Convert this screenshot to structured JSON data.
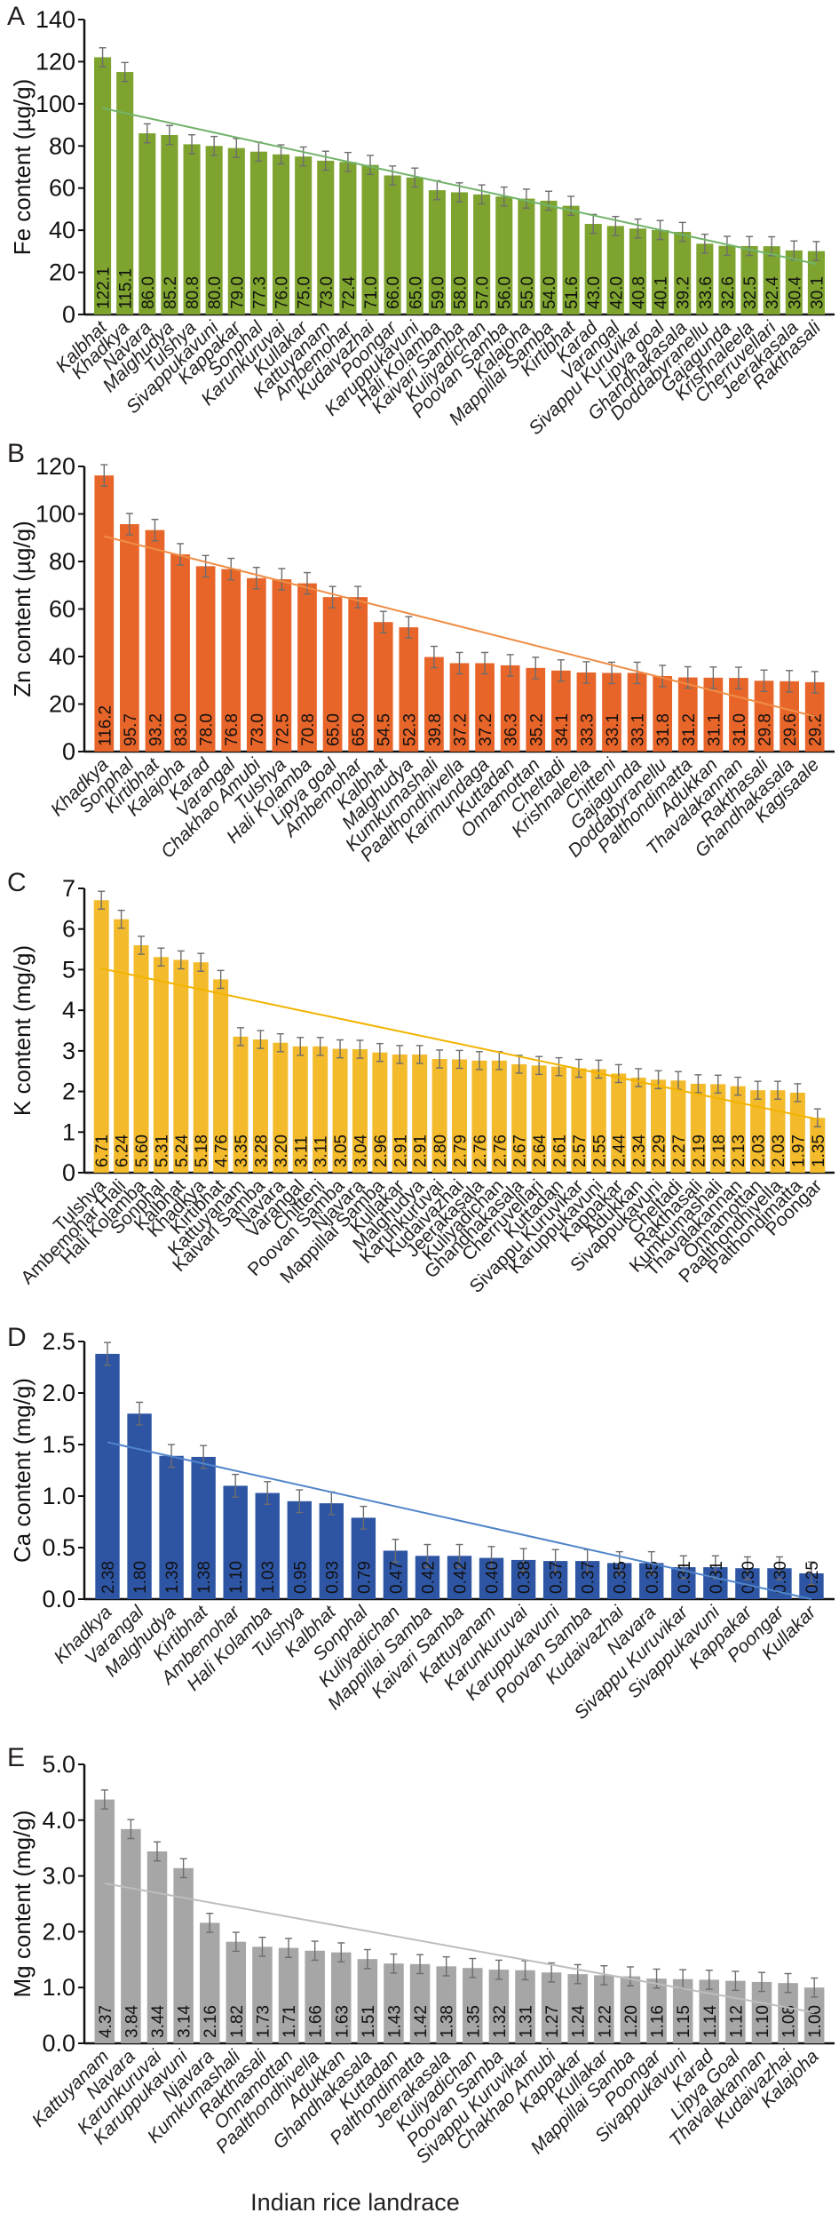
{
  "figure": {
    "xlabel": "Indian rice landrace"
  },
  "chart_data": [
    {
      "panel": "A",
      "type": "bar",
      "ylabel": "Fe content (µg/g)",
      "ylim": [
        0,
        140
      ],
      "yticks": [
        0,
        20,
        40,
        60,
        80,
        100,
        120,
        140
      ],
      "ytick_labels": [
        "0",
        "20",
        "40",
        "60",
        "80",
        "100",
        "120",
        "140"
      ],
      "color": "#7ea42f",
      "trend_color": "#72b36a",
      "error": 4.5,
      "italic_labels": true,
      "categories": [
        "Kalbhat",
        "Khadkya",
        "Navara",
        "Malghudya",
        "Tulshya",
        "Sivappukavuni",
        "Kappakar",
        "Sonphal",
        "Karunkuruvai",
        "Kullakar",
        "Kattuyanam",
        "Ambemohar",
        "Kudaivazhai",
        "Poongar",
        "Karuppukavuni",
        "Hali Kolamba",
        "Kaivari Samba",
        "Kuliyadichan",
        "Poovan Samba",
        "Kalajoha",
        "Mappillai Samba",
        "Kirtibhat",
        "Karad",
        "Varangal",
        "Sivappu Kuruvikar",
        "Lipya goal",
        "Ghandhakasala",
        "Doddabyranellu",
        "Gajagunda",
        "Krishnaleela",
        "Cherruvellari",
        "Jeerakasala",
        "Rakthasali"
      ],
      "values": [
        122.1,
        115.1,
        86.0,
        85.2,
        80.8,
        80.0,
        79.0,
        77.3,
        76.0,
        75.0,
        73.0,
        72.4,
        71.0,
        66.0,
        65.0,
        59.0,
        58.0,
        57.0,
        56.0,
        55.0,
        54.0,
        51.6,
        43.0,
        42.0,
        40.8,
        40.1,
        39.2,
        33.6,
        32.6,
        32.5,
        32.4,
        30.4,
        30.1
      ],
      "value_labels": [
        "122.1",
        "115.1",
        "86.0",
        "85.2",
        "80.8",
        "80.0",
        "79.0",
        "77.3",
        "76.0",
        "75.0",
        "73.0",
        "72.4",
        "71.0",
        "66.0",
        "65.0",
        "59.0",
        "58.0",
        "57.0",
        "56.0",
        "55.0",
        "54.0",
        "51.6",
        "43.0",
        "42.0",
        "40.8",
        "40.1",
        "39.2",
        "33.6",
        "32.6",
        "32.5",
        "32.4",
        "30.4",
        "30.1"
      ],
      "trendline": "linear"
    },
    {
      "panel": "B",
      "type": "bar",
      "ylabel": "Zn content (µg/g)",
      "ylim": [
        0,
        120
      ],
      "yticks": [
        0,
        20,
        40,
        60,
        80,
        100,
        120
      ],
      "ytick_labels": [
        "0",
        "20",
        "40",
        "60",
        "80",
        "100",
        "120"
      ],
      "color": "#e8652a",
      "trend_color": "#ef8d44",
      "error": 4.5,
      "italic_labels": true,
      "categories": [
        "Khadkya",
        "Sonphal",
        "Kirtibhat",
        "Kalajoha",
        "Karad",
        "Varangal",
        "Chakhao Amubi",
        "Tulshya",
        "Hali Kolamba",
        "Lipya goal",
        "Ambemohar",
        "Kalbhat",
        "Malghudya",
        "Kumkumashali",
        "Paalthondhivella",
        "Karimundaga",
        "Kuttadan",
        "Onnamottan",
        "Cheltadi",
        "Krishnaleela",
        "Chitteni",
        "Gajagunda",
        "Doddabyranellu",
        "Palthondimatta",
        "Adukkan",
        "Thavalakannan",
        "Rakthasali",
        "Ghandhakasala",
        "Kagisaale"
      ],
      "values": [
        116.2,
        95.7,
        93.2,
        83.0,
        78.0,
        76.8,
        73.0,
        72.5,
        70.8,
        65.0,
        65.0,
        54.5,
        52.3,
        39.8,
        37.2,
        37.2,
        36.3,
        35.2,
        34.1,
        33.3,
        33.1,
        33.1,
        31.8,
        31.2,
        31.1,
        31.0,
        29.8,
        29.6,
        29.2
      ],
      "value_labels": [
        "116.2",
        "95.7",
        "93.2",
        "83.0",
        "78.0",
        "76.8",
        "73.0",
        "72.5",
        "70.8",
        "65.0",
        "65.0",
        "54.5",
        "52.3",
        "39.8",
        "37.2",
        "37.2",
        "36.3",
        "35.2",
        "34.1",
        "33.3",
        "33.1",
        "33.1",
        "31.8",
        "31.2",
        "31.1",
        "31.0",
        "29.8",
        "29.6",
        "29.2"
      ],
      "trendline": "linear"
    },
    {
      "panel": "C",
      "type": "bar",
      "ylabel": "K content (mg/g)",
      "ylim": [
        0,
        7
      ],
      "yticks": [
        0,
        1,
        2,
        3,
        4,
        5,
        6,
        7
      ],
      "ytick_labels": [
        "0",
        "1",
        "2",
        "3",
        "4",
        "5",
        "6",
        "7"
      ],
      "color": "#f3bb2c",
      "trend_color": "#f2b300",
      "error": 0.22,
      "italic_labels": false,
      "categories": [
        "Tulshya",
        "Ambemohar Hali",
        "Hali Kolamba",
        "Sonphal",
        "Kalbhat",
        "Khadkya",
        "Kirtibhat",
        "Kattuyanam",
        "Kaivari Samba",
        "Navara",
        "Varangal",
        "Chitteni",
        "Poovan Samba",
        "Njavara",
        "Mappillai Samba",
        "Kullakar",
        "Malghudya",
        "Karunkuruvai",
        "Kudaivazhai",
        "Jeerakasala",
        "Kuliyadichan",
        "Ghandhakasala",
        "Cherruvellari",
        "Kuttadan",
        "Sivappu Kuruvikar",
        "Karuppukavuni",
        "Kappakar",
        "Adukkan",
        "Sivappukavuni",
        "Cheltadi",
        "Rakthasali",
        "Kumkumashali",
        "Thavalakannan",
        "Onnamottan",
        "Paalthondhivella",
        "Palthondimatta",
        "Poongar"
      ],
      "values": [
        6.71,
        6.24,
        5.6,
        5.31,
        5.24,
        5.18,
        4.76,
        3.35,
        3.28,
        3.2,
        3.11,
        3.11,
        3.05,
        3.04,
        2.96,
        2.91,
        2.91,
        2.8,
        2.79,
        2.76,
        2.76,
        2.67,
        2.64,
        2.61,
        2.57,
        2.55,
        2.44,
        2.34,
        2.29,
        2.27,
        2.19,
        2.18,
        2.13,
        2.03,
        2.03,
        1.97,
        1.35
      ],
      "value_labels": [
        "6.71",
        "6.24",
        "5.60",
        "5.31",
        "5.24",
        "5.18",
        "4.76",
        "3.35",
        "3.28",
        "3.20",
        "3.11",
        "3.11",
        "3.05",
        "3.04",
        "2.96",
        "2.91",
        "2.91",
        "2.80",
        "2.79",
        "2.76",
        "2.76",
        "2.67",
        "2.64",
        "2.61",
        "2.57",
        "2.55",
        "2.44",
        "2.34",
        "2.29",
        "2.27",
        "2.19",
        "2.18",
        "2.13",
        "2.03",
        "2.03",
        "1.97",
        "1.35"
      ],
      "trendline": "linear"
    },
    {
      "panel": "D",
      "type": "bar",
      "ylabel": "Ca content (mg/g)",
      "ylim": [
        0,
        2.5
      ],
      "yticks": [
        0,
        0.5,
        1.0,
        1.5,
        2.0,
        2.5
      ],
      "ytick_labels": [
        "0.0",
        "0.5",
        "1.0",
        "1.5",
        "2.0",
        "2.5"
      ],
      "color": "#2e55a4",
      "trend_color": "#4f84c9",
      "error": 0.11,
      "italic_labels": true,
      "categories": [
        "Khadkya",
        "Varangal",
        "Malghudya",
        "Kirtibhat",
        "Ambemohar",
        "Hali Kolamba",
        "Tulshya",
        "Kalbhat",
        "Sonphal",
        "Kuliyadichan",
        "Mappillai Samba",
        "Kaivari Samba",
        "Kattuyanam",
        "Karunkuruvai",
        "Karuppukavuni",
        "Poovan Samba",
        "Kudaivazhai",
        "Navara",
        "Sivappu Kuruvikar",
        "Sivappukavuni",
        "Kappakar",
        "Poongar",
        "Kullakar"
      ],
      "values": [
        2.38,
        1.8,
        1.39,
        1.38,
        1.1,
        1.03,
        0.95,
        0.93,
        0.79,
        0.47,
        0.42,
        0.42,
        0.4,
        0.38,
        0.37,
        0.37,
        0.35,
        0.35,
        0.31,
        0.31,
        0.3,
        0.3,
        0.25
      ],
      "value_labels": [
        "2.38",
        "1.80",
        "1.39",
        "1.38",
        "1.10",
        "1.03",
        "0.95",
        "0.93",
        "0.79",
        "0.47",
        "0.42",
        "0.42",
        "0.40",
        "0.38",
        "0.37",
        "0.37",
        "0.35",
        "0.35",
        "0.31",
        "0.31",
        "0.30",
        "0.30",
        "0.25"
      ],
      "trendline": "linear"
    },
    {
      "panel": "E",
      "type": "bar",
      "ylabel": "Mg content (mg/g)",
      "ylim": [
        0,
        5.0
      ],
      "yticks": [
        0,
        1.0,
        2.0,
        3.0,
        4.0,
        5.0
      ],
      "ytick_labels": [
        "0.0",
        "1.0",
        "2.0",
        "3.0",
        "4.0",
        "5.0"
      ],
      "color": "#a6a6a6",
      "trend_color": "#bdbdbd",
      "error": 0.17,
      "italic_labels": true,
      "categories": [
        "Kattuyanam",
        "Navara",
        "Karunkuruvai",
        "Karuppukavuni",
        "Njavara",
        "Kumkumashali",
        "Rakthasali",
        "Onnamottan",
        "Paalthondhivella",
        "Adukkan",
        "Ghandhakasala",
        "Kuttadan",
        "Palthondimatta",
        "Jeerakasala",
        "Kuliyadichan",
        "Poovan Samba",
        "Sivappu Kuruvikar",
        "Chakhao Amubi",
        "Kappakar",
        "Kullakar",
        "Mappillai Samba",
        "Poongar",
        "Sivappukavuni",
        "Karad",
        "Lipya Goal",
        "Thavalakannan",
        "Kudaivazhai",
        "Kalajoha"
      ],
      "values": [
        4.37,
        3.84,
        3.44,
        3.14,
        2.16,
        1.82,
        1.73,
        1.71,
        1.66,
        1.63,
        1.51,
        1.43,
        1.42,
        1.38,
        1.35,
        1.32,
        1.31,
        1.27,
        1.24,
        1.22,
        1.2,
        1.16,
        1.15,
        1.14,
        1.12,
        1.1,
        1.08,
        1.0
      ],
      "value_labels": [
        "4.37",
        "3.84",
        "3.44",
        "3.14",
        "2.16",
        "1.82",
        "1.73",
        "1.71",
        "1.66",
        "1.63",
        "1.51",
        "1.43",
        "1.42",
        "1.38",
        "1.35",
        "1.32",
        "1.31",
        "1.27",
        "1.24",
        "1.22",
        "1.20",
        "1.16",
        "1.15",
        "1.14",
        "1.12",
        "1.10",
        "1.08",
        "1.00"
      ],
      "trendline": "linear"
    }
  ]
}
